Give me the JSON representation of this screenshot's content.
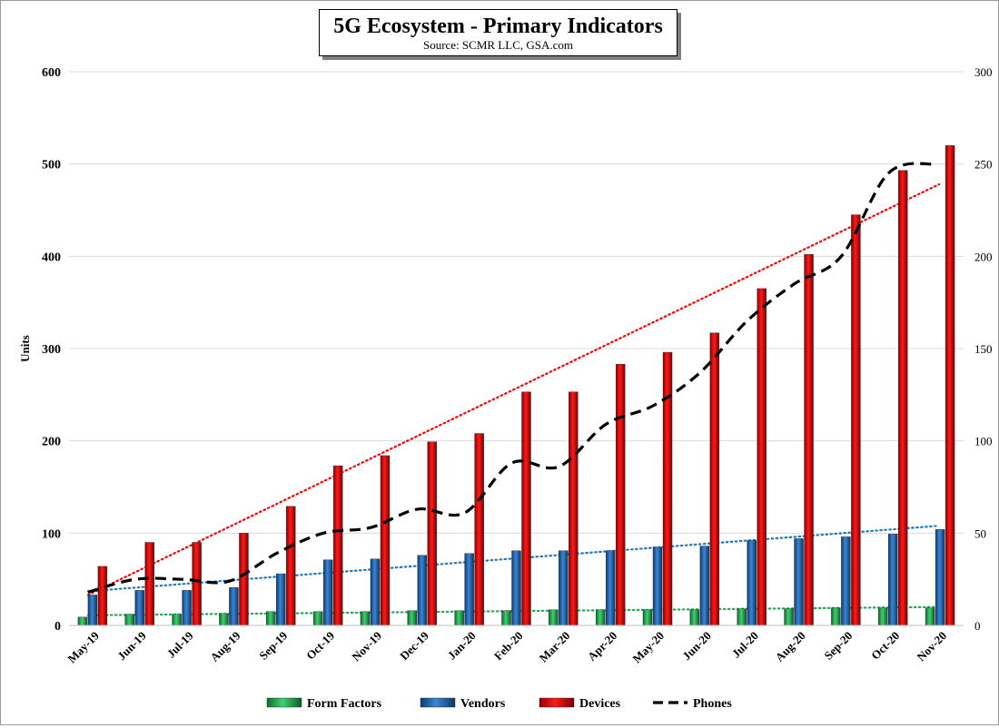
{
  "chart_data": {
    "type": "bar",
    "title": "5G Ecosystem - Primary Indicators",
    "subtitle": "Source: SCMR LLC, GSA.com",
    "ylabel": "Units",
    "ylim": [
      0,
      600
    ],
    "y2lim": [
      0,
      300
    ],
    "yticks": [
      "0",
      "100",
      "200",
      "300",
      "400",
      "500",
      "600"
    ],
    "y2ticks": [
      "0",
      "50",
      "100",
      "150",
      "200",
      "250",
      "300"
    ],
    "categories": [
      "May-19",
      "Jun-19",
      "Jul-19",
      "Aug-19",
      "Sep-19",
      "Oct-19",
      "Nov-19",
      "Dec-19",
      "Jan-20",
      "Feb-20",
      "Mar-20",
      "Apr-20",
      "May-20",
      "Jun-20",
      "Jul-20",
      "Aug-20",
      "Sep-20",
      "Oct-20",
      "Nov-20"
    ],
    "series": [
      {
        "name": "Form Factors",
        "type": "bar",
        "axis": "left",
        "color": "#1e9e4a",
        "values": [
          9,
          12,
          12,
          13,
          15,
          15,
          15,
          16,
          16,
          16,
          17,
          17,
          17,
          17,
          18,
          18,
          19,
          19,
          19
        ]
      },
      {
        "name": "Vendors",
        "type": "bar",
        "axis": "left",
        "color": "#1f5fa8",
        "values": [
          33,
          38,
          38,
          41,
          56,
          71,
          72,
          76,
          78,
          81,
          81,
          81,
          85,
          86,
          92,
          94,
          96,
          99,
          104
        ]
      },
      {
        "name": "Devices",
        "type": "bar",
        "axis": "left",
        "color": "#d00000",
        "values": [
          64,
          90,
          90,
          100,
          129,
          173,
          184,
          199,
          208,
          253,
          253,
          283,
          296,
          317,
          365,
          402,
          445,
          493,
          520
        ]
      },
      {
        "name": "Phones",
        "type": "line",
        "axis": "right",
        "color": "#000000",
        "values": [
          18,
          25,
          25,
          24,
          39,
          50,
          53,
          63,
          61,
          88,
          86,
          109,
          119,
          137,
          165,
          185,
          200,
          245,
          250
        ]
      }
    ],
    "trendlines": [
      {
        "series": "Devices",
        "color": "#ff0000",
        "start": 33,
        "end": 478
      },
      {
        "series": "Vendors",
        "color": "#1f77c0",
        "start": 37,
        "end": 108
      },
      {
        "series": "Form Factors",
        "color": "#22aa55",
        "start": 11,
        "end": 20
      }
    ],
    "legend": [
      "Form Factors",
      "Vendors",
      "Devices",
      "Phones"
    ],
    "legend_position": "bottom",
    "grid": true
  }
}
